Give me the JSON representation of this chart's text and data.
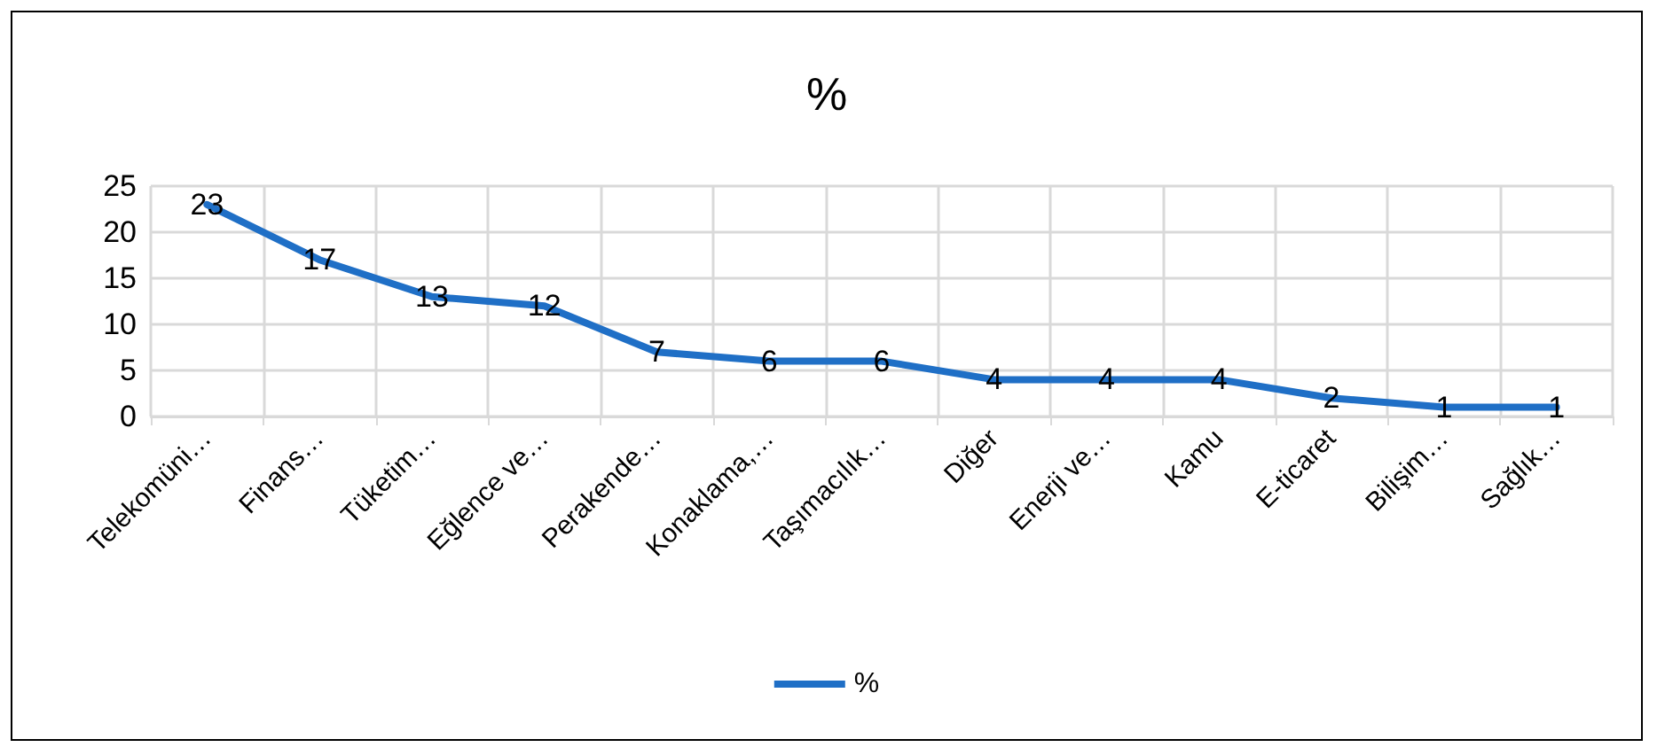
{
  "chart_data": {
    "type": "line",
    "title": "%",
    "categories": [
      "Telekomüni…",
      "Finans…",
      "Tüketim…",
      "Eğlence ve…",
      "Perakende…",
      "Konaklama,…",
      "Taşımacılık…",
      "Diğer",
      "Enerji ve…",
      "Kamu",
      "E-ticaret",
      "Bilişim…",
      "Sağlık…"
    ],
    "series": [
      {
        "name": "%",
        "color": "#1f6fc6",
        "values": [
          23,
          17,
          13,
          12,
          7,
          6,
          6,
          4,
          4,
          4,
          2,
          1,
          1
        ]
      }
    ],
    "ylim": [
      0,
      25
    ],
    "yticks": [
      0,
      5,
      10,
      15,
      20,
      25
    ],
    "grid": true,
    "legend": "bottom",
    "data_labels": true,
    "marker": "none",
    "line_style": "solid"
  }
}
